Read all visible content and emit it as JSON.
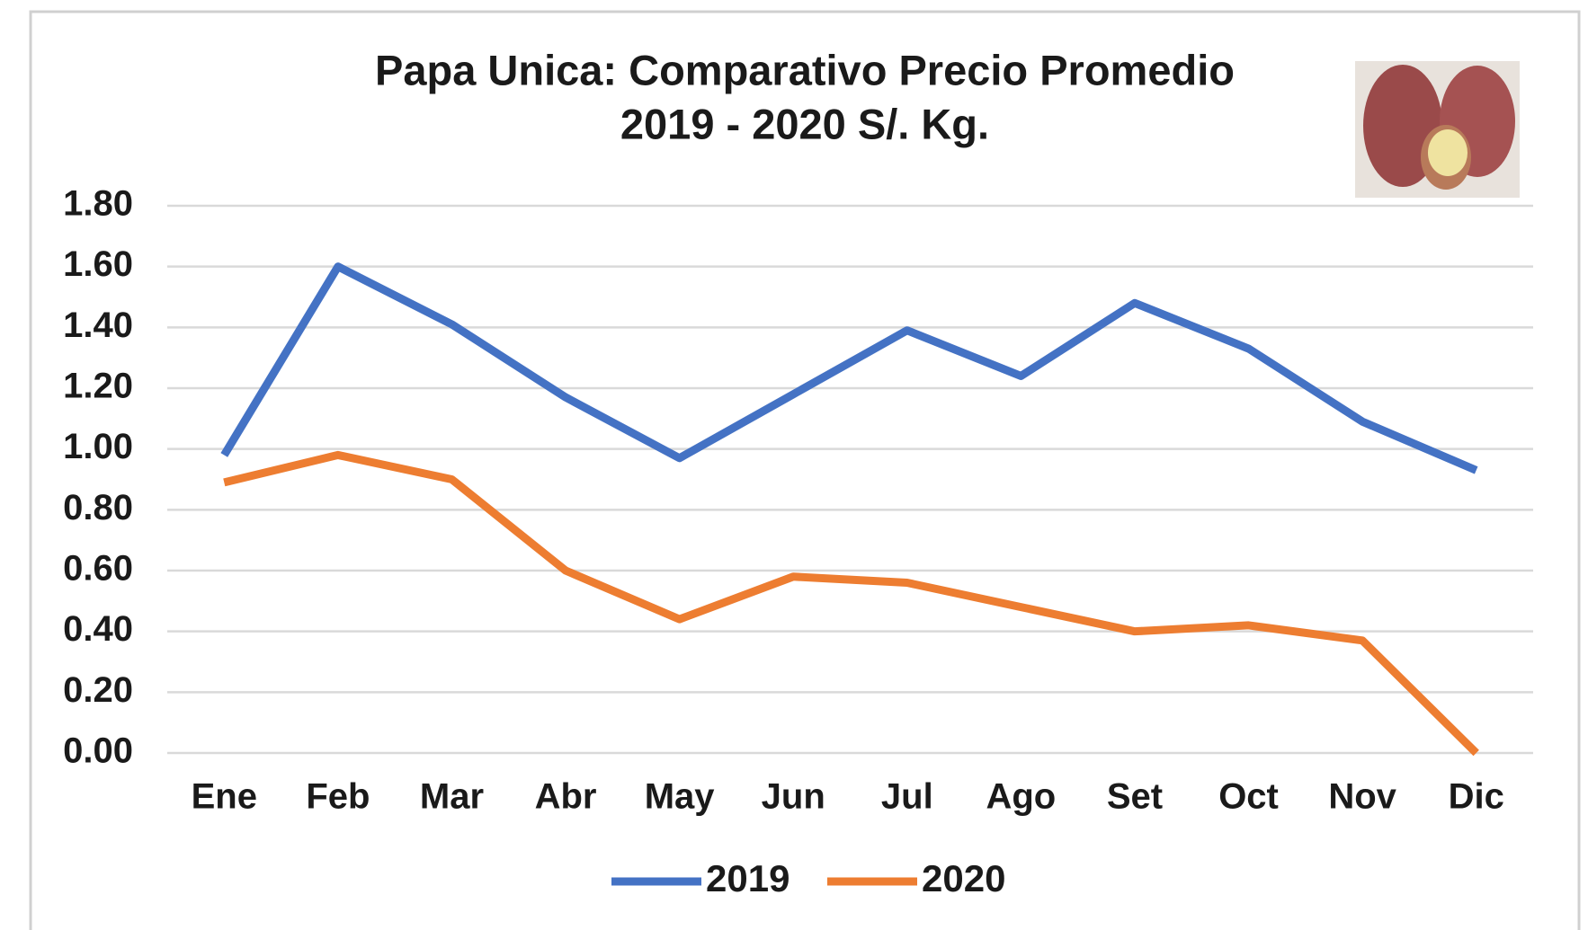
{
  "chart_data": {
    "type": "line",
    "title": [
      "Papa Unica: Comparativo Precio Promedio",
      "2019 - 2020 S/. Kg."
    ],
    "categories": [
      "Ene",
      "Feb",
      "Mar",
      "Abr",
      "May",
      "Jun",
      "Jul",
      "Ago",
      "Set",
      "Oct",
      "Nov",
      "Dic"
    ],
    "series": [
      {
        "name": "2019",
        "color": "#4472c4",
        "values": [
          0.98,
          1.6,
          1.41,
          1.17,
          0.97,
          1.18,
          1.39,
          1.24,
          1.48,
          1.33,
          1.09,
          0.93
        ]
      },
      {
        "name": "2020",
        "color": "#ed7d31",
        "values": [
          0.89,
          0.98,
          0.9,
          0.6,
          0.44,
          0.58,
          0.56,
          0.48,
          0.4,
          0.42,
          0.37,
          0.0
        ]
      }
    ],
    "ylim": [
      0,
      1.8
    ],
    "yticks": [
      {
        "value": 0,
        "label": "0.00"
      },
      {
        "value": 0.2,
        "label": "0.20"
      },
      {
        "value": 0.4,
        "label": "0.40"
      },
      {
        "value": 0.6,
        "label": "0.60"
      },
      {
        "value": 0.8,
        "label": "0.80"
      },
      {
        "value": 1,
        "label": "1.00"
      },
      {
        "value": 1.2,
        "label": "1.20"
      },
      {
        "value": 1.4,
        "label": "1.40"
      },
      {
        "value": 1.6,
        "label": "1.60"
      },
      {
        "value": 1.8,
        "label": "1.80"
      }
    ],
    "grid": true,
    "legend": "bottom"
  }
}
